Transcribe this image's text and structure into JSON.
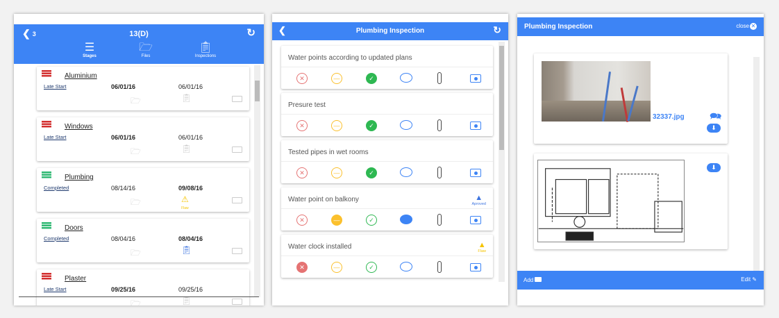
{
  "panel1": {
    "back_count": "3",
    "title": "13(D)",
    "tabs": [
      {
        "label": "Stages",
        "icon": "stages-icon"
      },
      {
        "label": "Files",
        "icon": "folder-icon"
      },
      {
        "label": "Inspections",
        "icon": "clipboard-icon"
      }
    ],
    "stages": [
      {
        "name": "Aluminium",
        "status": "Late Start",
        "color": "#d32f2f",
        "start": "06/01/16",
        "end": "06/01/16",
        "bold": "start",
        "inspection": "none"
      },
      {
        "name": "Windows",
        "status": "Late Start",
        "color": "#d32f2f",
        "start": "06/01/16",
        "end": "06/01/16",
        "bold": "start",
        "inspection": "none"
      },
      {
        "name": "Plumbing",
        "status": "Completed",
        "color": "#2eb872",
        "start": "08/14/16",
        "end": "09/08/16",
        "bold": "end",
        "inspection": "flaw",
        "inspection_label": "Flaw"
      },
      {
        "name": "Doors",
        "status": "Completed",
        "color": "#2eb872",
        "start": "08/04/16",
        "end": "08/04/16",
        "bold": "end",
        "inspection": "done"
      },
      {
        "name": "Plaster",
        "status": "Late Start",
        "color": "#d32f2f",
        "start": "09/25/16",
        "end": "09/25/16",
        "bold": "start",
        "inspection": "none"
      }
    ]
  },
  "panel2": {
    "title": "Plumbing Inspection",
    "items": [
      {
        "text": "Water points according to updated plans",
        "selected": "ok",
        "comment": false,
        "badge": null
      },
      {
        "text": "Presure test",
        "selected": "ok",
        "comment": false,
        "badge": null
      },
      {
        "text": "Tested pipes in wet rooms",
        "selected": "ok",
        "comment": false,
        "badge": null
      },
      {
        "text": "Water point on balkony",
        "selected": "partial",
        "comment": true,
        "badge": {
          "label": "Aproved",
          "color": "#3d74e0"
        }
      },
      {
        "text": "Water clock installed",
        "selected": "fail",
        "comment": false,
        "badge": {
          "label": "Flaw",
          "color": "#f5c400"
        }
      }
    ]
  },
  "panel3": {
    "title": "Plumbing Inspection",
    "close_label": "close",
    "files": [
      {
        "name": "32337.jpg",
        "type": "photo"
      },
      {
        "name": "",
        "type": "plan"
      }
    ],
    "add_label": "Add",
    "edit_label": "Edit"
  },
  "colors": {
    "primary": "#3d84f5",
    "fail": "#e53935",
    "partial": "#fbc02d",
    "ok": "#2eb852"
  }
}
